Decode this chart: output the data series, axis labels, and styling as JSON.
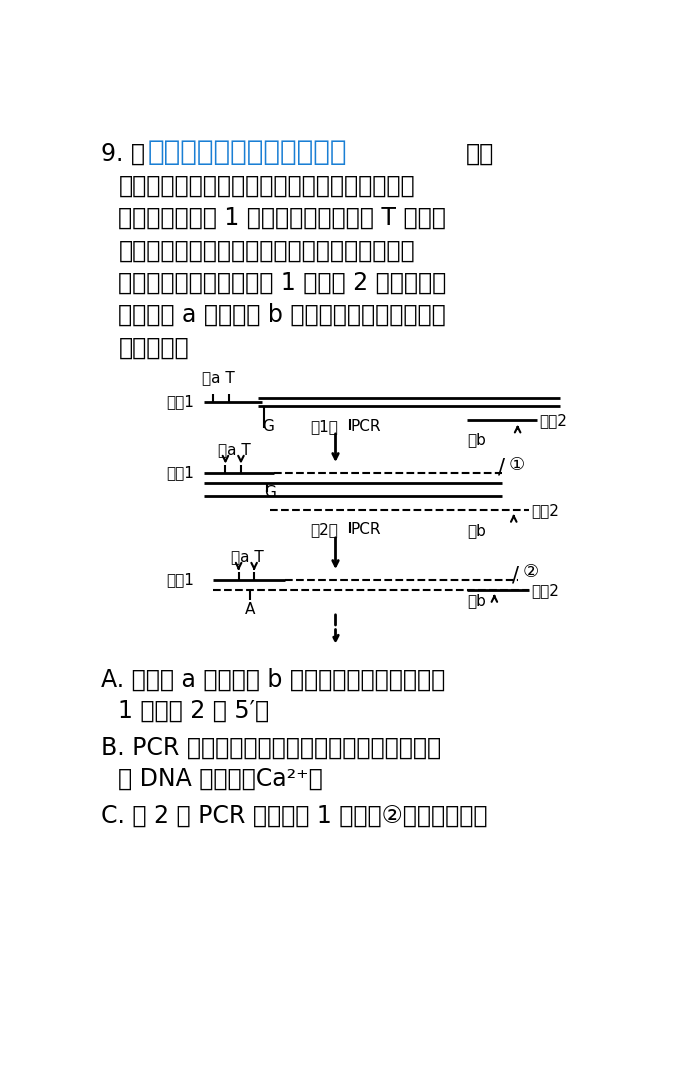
{
  "bg_color": "#ffffff",
  "text_color": "#000000",
  "fs_main": 17,
  "fs_small": 12,
  "fs_diagram": 11,
  "line1_black1": "9. 通",
  "line1_blue": "微信公众号关注：趣找答案",
  "line1_black2": "基因",
  "line2": "的定点诱变，如图为基因工程中获取突变基因的",
  "line3": "过程，其中引物 1 序列中含有一个碘基 T 不能与",
  "line4": "目的基因片段配对，但不影响引物与模板链的整",
  "line5": "体配对，反应体系中引物 1 和引物 2 分别设计增",
  "line6": "加限制酶 a 和限制酶 b 的识别位点。下列有关叙",
  "line7": "述正确的是",
  "opt_A1": "A. 限制酶 a 和限制酶 b 的识别位点分别加在引物",
  "opt_A2": "1 和引物 2 的 5′端",
  "opt_B1": "B. PCR 反应体系中需要加入脱氧核苷酸、耐高温",
  "opt_B2": "的 DNA 聚合酶、Ca²⁺等",
  "opt_C1": "C. 第 2 轮 PCR 中，引物 1 与图中②结合并形成两"
}
